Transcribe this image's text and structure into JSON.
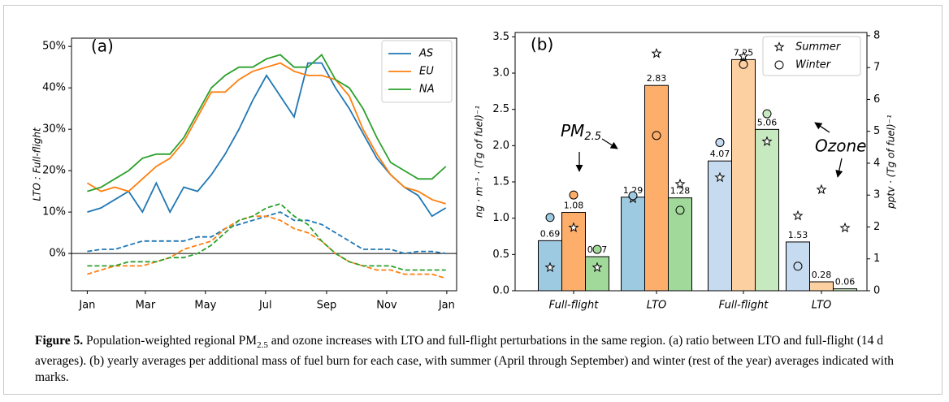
{
  "chart_data": [
    {
      "type": "line",
      "panel_label": "(a)",
      "y_label": "LTO : Full-flight",
      "legend": "upper right",
      "x": [
        0,
        14,
        28,
        42,
        56,
        70,
        84,
        98,
        112,
        126,
        140,
        154,
        168,
        182,
        196,
        210,
        224,
        238,
        252,
        266,
        280,
        294,
        308,
        322,
        336,
        350,
        364
      ],
      "xlim": [
        -16,
        375
      ],
      "xticks": [
        {
          "value": 0,
          "label": "Jan"
        },
        {
          "value": 59,
          "label": "Mar"
        },
        {
          "value": 120,
          "label": "May"
        },
        {
          "value": 181,
          "label": "Jul"
        },
        {
          "value": 243,
          "label": "Sep"
        },
        {
          "value": 304,
          "label": "Nov"
        },
        {
          "value": 365,
          "label": "Jan"
        }
      ],
      "ylim": [
        -9,
        52
      ],
      "yticks": [
        {
          "value": 0,
          "label": "0%"
        },
        {
          "value": 10,
          "label": "10%"
        },
        {
          "value": 20,
          "label": "20%"
        },
        {
          "value": 30,
          "label": "30%"
        },
        {
          "value": 40,
          "label": "40%"
        },
        {
          "value": 50,
          "label": "50%"
        }
      ],
      "zero_line": true,
      "series": [
        {
          "name": "AS",
          "color": "#1f77b4",
          "values": [
            10,
            11,
            13,
            15,
            10,
            17,
            10,
            16,
            15,
            19,
            24,
            30,
            37,
            43,
            38,
            33,
            46,
            46,
            40,
            35,
            29,
            23,
            19,
            16,
            14,
            9,
            11
          ]
        },
        {
          "name": "EU",
          "color": "#ff7f0e",
          "values": [
            17,
            15,
            16,
            15,
            18,
            21,
            23,
            27,
            33,
            39,
            39,
            42,
            44,
            45,
            46,
            44,
            43,
            43,
            42,
            38,
            30,
            24,
            19,
            16,
            15,
            13,
            12
          ]
        },
        {
          "name": "NA",
          "color": "#2ca02c",
          "values": [
            15,
            16,
            18,
            20,
            23,
            24,
            24,
            28,
            34,
            40,
            43,
            45,
            45,
            47,
            48,
            45,
            45,
            48,
            42,
            40,
            35,
            28,
            22,
            20,
            18,
            18,
            21
          ]
        },
        {
          "color": "#1f77b4",
          "dashed": true,
          "values": [
            0.5,
            1,
            1,
            2,
            3,
            3,
            3,
            3,
            4,
            4,
            6,
            7,
            8,
            9,
            10,
            8,
            8,
            7,
            5,
            3,
            1,
            1,
            1,
            0,
            0.5,
            0.5,
            0
          ]
        },
        {
          "color": "#ff7f0e",
          "dashed": true,
          "values": [
            -5,
            -4,
            -3,
            -3,
            -3,
            -2,
            -1,
            1,
            2,
            3,
            6,
            8,
            9,
            9,
            8,
            6,
            5,
            3,
            0,
            -2,
            -3,
            -4,
            -4,
            -5,
            -5,
            -5,
            -6
          ]
        },
        {
          "color": "#2ca02c",
          "dashed": true,
          "values": [
            -3,
            -3,
            -3,
            -2,
            -2,
            -2,
            -1,
            -1,
            0,
            2,
            5,
            8,
            9,
            11,
            12,
            9,
            7,
            3,
            0,
            -2,
            -3,
            -3,
            -3,
            -4,
            -4,
            -4,
            -4
          ]
        }
      ]
    },
    {
      "type": "bar",
      "panel_label": "(b)",
      "y_label": "ng · m⁻³ · (Tg of fuel)⁻¹",
      "y2_label": "pptv · (Tg of fuel)⁻¹",
      "categories": [
        "Full-flight",
        "LTO",
        "Full-flight",
        "LTO"
      ],
      "axes": [
        "y",
        "y",
        "y2",
        "y2"
      ],
      "ylim": [
        0,
        3.56
      ],
      "yticks": [
        {
          "value": 0,
          "label": "0.0"
        },
        {
          "value": 0.5,
          "label": "0.5"
        },
        {
          "value": 1,
          "label": "1.0"
        },
        {
          "value": 1.5,
          "label": "1.5"
        },
        {
          "value": 2,
          "label": "2.0"
        },
        {
          "value": 2.5,
          "label": "2.5"
        },
        {
          "value": 3,
          "label": "3.0"
        },
        {
          "value": 3.5,
          "label": "3.5"
        }
      ],
      "y2lim": [
        0,
        8.1
      ],
      "y2ticks": [
        0,
        1,
        2,
        3,
        4,
        5,
        6,
        7,
        8
      ],
      "series": [
        {
          "colors": [
            "#9ecae1",
            "#9ecae1",
            "#c6dbef",
            "#c6dbef"
          ],
          "values": [
            0.69,
            1.29,
            4.07,
            1.53
          ]
        },
        {
          "colors": [
            "#fdae6b",
            "#fdae6b",
            "#fdd0a2",
            "#fdd0a2"
          ],
          "values": [
            1.08,
            2.83,
            7.25,
            0.28
          ]
        },
        {
          "colors": [
            "#a1d99b",
            "#a1d99b",
            "#c7e9c0",
            "#c7e9c0"
          ],
          "values": [
            0.47,
            1.28,
            5.06,
            0.06
          ]
        }
      ],
      "legend": "upper right",
      "markers": [
        {
          "name": "Summer",
          "symbol": "star",
          "values": [
            [
              0.32,
              0.87,
              0.32
            ],
            [
              1.27,
              3.27,
              1.47
            ],
            [
              3.55,
              7.35,
              4.68
            ],
            [
              2.35,
              3.17,
              1.97
            ]
          ]
        },
        {
          "name": "Winter",
          "symbol": "circle",
          "values": [
            [
              1.01,
              1.32,
              0.57
            ],
            [
              1.31,
              2.14,
              1.11
            ],
            [
              4.65,
              7.1,
              5.55
            ],
            [
              0.77,
              null,
              null
            ]
          ]
        }
      ],
      "annotations": [
        {
          "text": "PM",
          "sub": "2.5"
        },
        {
          "text": "Ozone"
        }
      ]
    }
  ],
  "caption": {
    "label": "Figure 5.",
    "parts": [
      "Population-weighted regional PM",
      "2.5",
      " and ozone increases with LTO and full-flight perturbations in the same region. (a) ratio between LTO and full-flight (14 d averages). (b) yearly averages per additional mass of fuel burn for each case, with summer (April through September) and winter (rest of the year) averages indicated with marks."
    ]
  }
}
